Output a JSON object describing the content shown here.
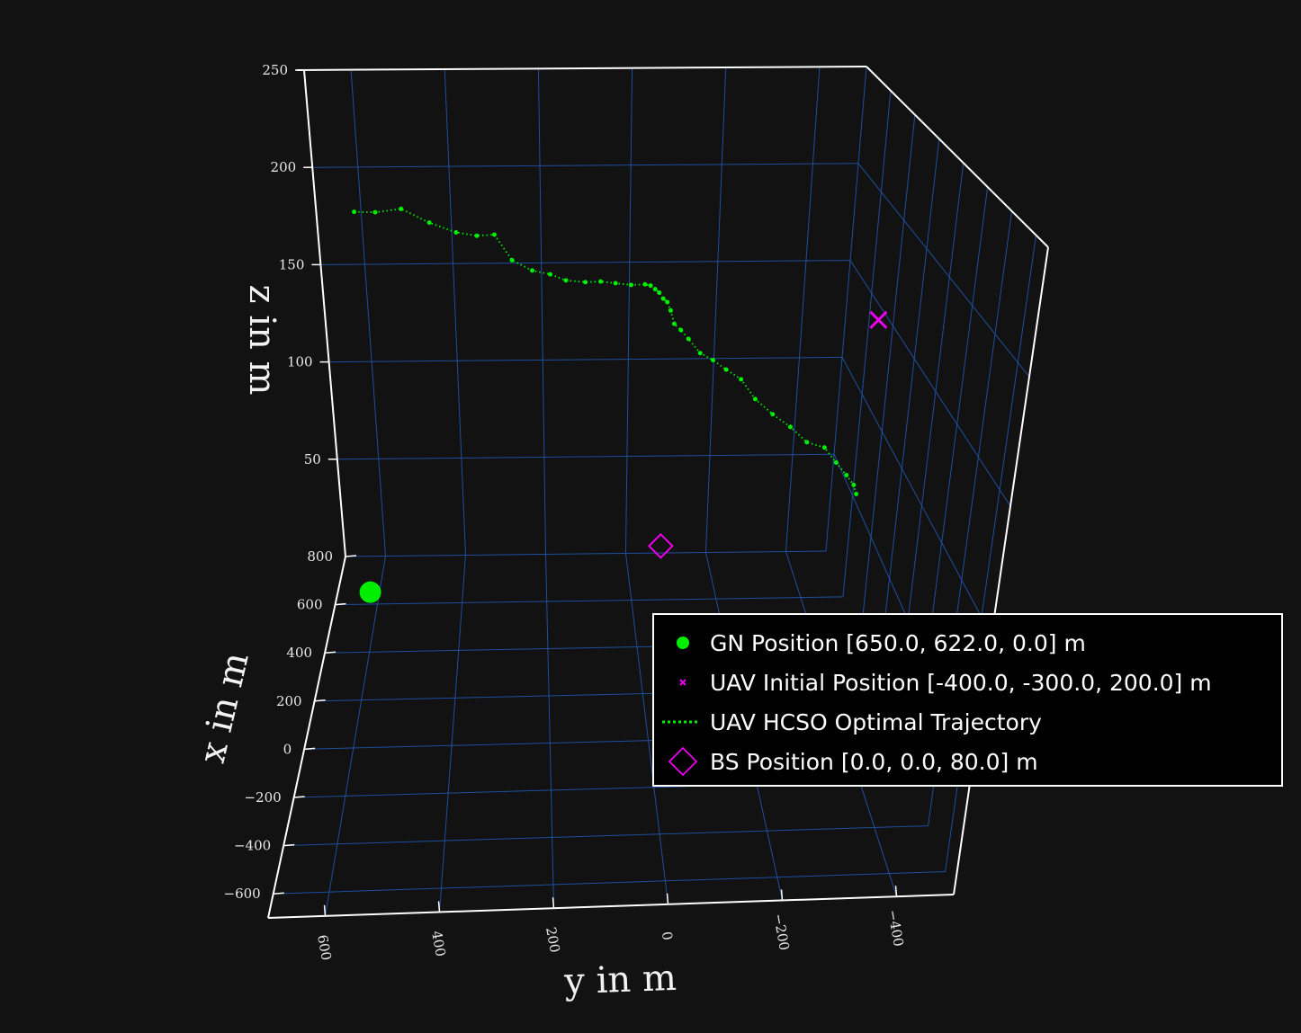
{
  "chart_data": {
    "type": "scatter",
    "title": "",
    "xlabel": "x in m",
    "ylabel": "y in m",
    "zlabel": "z in m",
    "xlim": [
      -700,
      800
    ],
    "ylim": [
      -500,
      700
    ],
    "zlim": [
      0,
      250
    ],
    "x_ticks": [
      {
        "value": 800,
        "label": "800"
      },
      {
        "value": 600,
        "label": "600"
      },
      {
        "value": 400,
        "label": "400"
      },
      {
        "value": 200,
        "label": "200"
      },
      {
        "value": 0,
        "label": "0"
      },
      {
        "value": -200,
        "label": "−200"
      },
      {
        "value": -400,
        "label": "−400"
      },
      {
        "value": -600,
        "label": "−600"
      }
    ],
    "y_ticks": [
      {
        "value": 600,
        "label": "600"
      },
      {
        "value": 400,
        "label": "400"
      },
      {
        "value": 200,
        "label": "200"
      },
      {
        "value": 0,
        "label": "0"
      },
      {
        "value": -200,
        "label": "−200"
      },
      {
        "value": -400,
        "label": "−400"
      }
    ],
    "z_ticks": [
      {
        "value": 50,
        "label": "50"
      },
      {
        "value": 100,
        "label": "100"
      },
      {
        "value": 150,
        "label": "150"
      },
      {
        "value": 200,
        "label": "200"
      },
      {
        "value": 250,
        "label": "250"
      }
    ],
    "grid": true,
    "legend_position": "right",
    "colors": {
      "background": "#121212",
      "axis_line": "#ffffff",
      "grid": "#1f4fa0",
      "gn": "#00ee00",
      "uav": "#ee00ee",
      "trajectory": "#00ee00",
      "bs": "#ee00ee"
    },
    "series": [
      {
        "name": "GN Position [650.0, 622.0, 0.0] m",
        "marker": "circle",
        "points": [
          {
            "x": 650,
            "y": 622,
            "z": 0
          }
        ]
      },
      {
        "name": "UAV Initial Position [-400.0, -300.0, 200.0] m",
        "marker": "x",
        "points": [
          {
            "x": -400,
            "y": -300,
            "z": 200
          }
        ]
      },
      {
        "name": "UAV HCSO Optimal Trajectory",
        "marker": "dotted-line",
        "points": [
          {
            "x": 620,
            "y": 610,
            "z": 185
          },
          {
            "x": 594,
            "y": 565,
            "z": 186
          },
          {
            "x": 567,
            "y": 510,
            "z": 189
          },
          {
            "x": 540,
            "y": 452,
            "z": 184
          },
          {
            "x": 513,
            "y": 397,
            "z": 181
          },
          {
            "x": 486,
            "y": 355,
            "z": 181
          },
          {
            "x": 459,
            "y": 320,
            "z": 183
          },
          {
            "x": 432,
            "y": 285,
            "z": 173
          },
          {
            "x": 405,
            "y": 245,
            "z": 170
          },
          {
            "x": 378,
            "y": 210,
            "z": 170
          },
          {
            "x": 351,
            "y": 180,
            "z": 169
          },
          {
            "x": 324,
            "y": 143,
            "z": 170
          },
          {
            "x": 297,
            "y": 115,
            "z": 172
          },
          {
            "x": 270,
            "y": 88,
            "z": 173
          },
          {
            "x": 243,
            "y": 60,
            "z": 174
          },
          {
            "x": 216,
            "y": 36,
            "z": 176
          },
          {
            "x": 189,
            "y": 28,
            "z": 177
          },
          {
            "x": 162,
            "y": 22,
            "z": 177
          },
          {
            "x": 135,
            "y": 17,
            "z": 177
          },
          {
            "x": 108,
            "y": 12,
            "z": 176
          },
          {
            "x": 81,
            "y": 7,
            "z": 176
          },
          {
            "x": 54,
            "y": 3,
            "z": 174
          },
          {
            "x": 27,
            "y": -2,
            "z": 170
          },
          {
            "x": 0,
            "y": -12,
            "z": 169
          },
          {
            "x": -27,
            "y": -24,
            "z": 167
          },
          {
            "x": -54,
            "y": -44,
            "z": 163
          },
          {
            "x": -81,
            "y": -65,
            "z": 162
          },
          {
            "x": -108,
            "y": -87,
            "z": 160
          },
          {
            "x": -135,
            "y": -112,
            "z": 158
          },
          {
            "x": -162,
            "y": -137,
            "z": 152
          },
          {
            "x": -189,
            "y": -167,
            "z": 148
          },
          {
            "x": -216,
            "y": -197,
            "z": 145
          },
          {
            "x": -243,
            "y": -225,
            "z": 141
          },
          {
            "x": -270,
            "y": -253,
            "z": 141
          },
          {
            "x": -297,
            "y": -272,
            "z": 137
          },
          {
            "x": -324,
            "y": -288,
            "z": 134
          },
          {
            "x": -351,
            "y": -298,
            "z": 132
          },
          {
            "x": -375,
            "y": -300,
            "z": 130
          }
        ]
      },
      {
        "name": "BS Position [0.0, 0.0, 80.0] m",
        "marker": "diamond",
        "points": [
          {
            "x": 0,
            "y": 0,
            "z": 80
          }
        ]
      }
    ]
  }
}
